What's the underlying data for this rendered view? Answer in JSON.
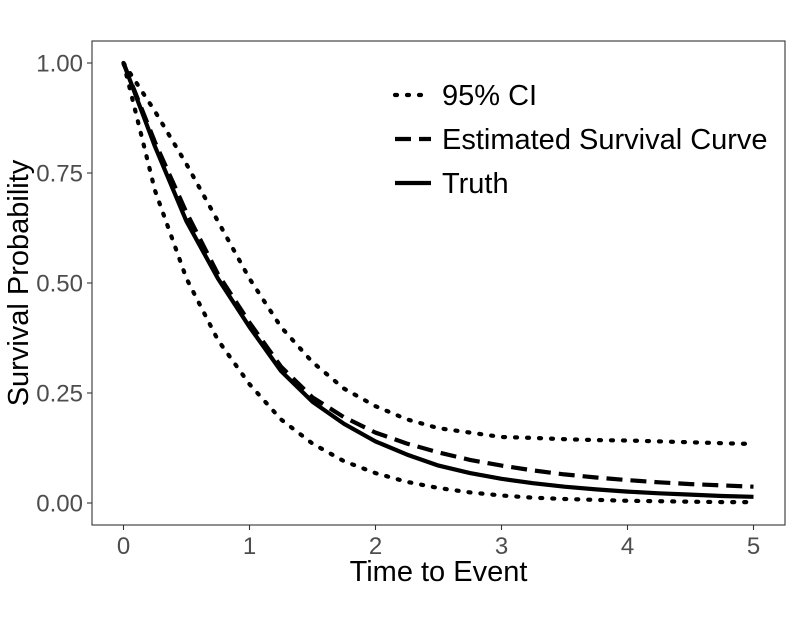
{
  "chart_data": {
    "type": "line",
    "title": "",
    "xlabel": "Time to Event",
    "ylabel": "Survival Probability",
    "xlim": [
      -0.25,
      5.25
    ],
    "ylim": [
      -0.05,
      1.05
    ],
    "x_ticks": [
      0,
      1,
      2,
      3,
      4,
      5
    ],
    "x_tick_labels": [
      "0",
      "1",
      "2",
      "3",
      "4",
      "5"
    ],
    "y_ticks": [
      0,
      0.25,
      0.5,
      0.75,
      1.0
    ],
    "y_tick_labels": [
      "0.00",
      "0.25",
      "0.50",
      "0.75",
      "1.00"
    ],
    "grid": false,
    "legend_position": "top-right",
    "legend": [
      {
        "label": "95% CI",
        "style": "dotted"
      },
      {
        "label": "Estimated Survival Curve",
        "style": "dashed"
      },
      {
        "label": "Truth",
        "style": "solid"
      }
    ],
    "x": [
      0,
      0.25,
      0.5,
      0.75,
      1.0,
      1.25,
      1.5,
      1.75,
      2.0,
      2.25,
      2.5,
      2.75,
      3.0,
      3.25,
      3.5,
      3.75,
      4.0,
      4.25,
      4.5,
      4.75,
      5.0
    ],
    "series": [
      {
        "role": "ci-upper",
        "style": "dotted",
        "values": [
          1.0,
          0.89,
          0.77,
          0.64,
          0.51,
          0.4,
          0.32,
          0.26,
          0.22,
          0.19,
          0.17,
          0.16,
          0.15,
          0.148,
          0.145,
          0.143,
          0.142,
          0.14,
          0.138,
          0.136,
          0.134
        ]
      },
      {
        "role": "ci-lower",
        "style": "dotted",
        "values": [
          1.0,
          0.71,
          0.51,
          0.37,
          0.27,
          0.19,
          0.135,
          0.095,
          0.068,
          0.048,
          0.034,
          0.024,
          0.017,
          0.012,
          0.009,
          0.007,
          0.005,
          0.004,
          0.003,
          0.002,
          0.002
        ]
      },
      {
        "name": "Estimated Survival Curve",
        "style": "dashed",
        "values": [
          1.0,
          0.82,
          0.66,
          0.52,
          0.41,
          0.31,
          0.24,
          0.195,
          0.16,
          0.135,
          0.115,
          0.098,
          0.085,
          0.074,
          0.065,
          0.058,
          0.052,
          0.047,
          0.043,
          0.04,
          0.037
        ]
      },
      {
        "name": "Truth",
        "style": "solid",
        "values": [
          1.0,
          0.81,
          0.64,
          0.51,
          0.4,
          0.3,
          0.23,
          0.18,
          0.14,
          0.11,
          0.085,
          0.068,
          0.055,
          0.045,
          0.037,
          0.031,
          0.026,
          0.022,
          0.019,
          0.016,
          0.014
        ]
      }
    ]
  }
}
